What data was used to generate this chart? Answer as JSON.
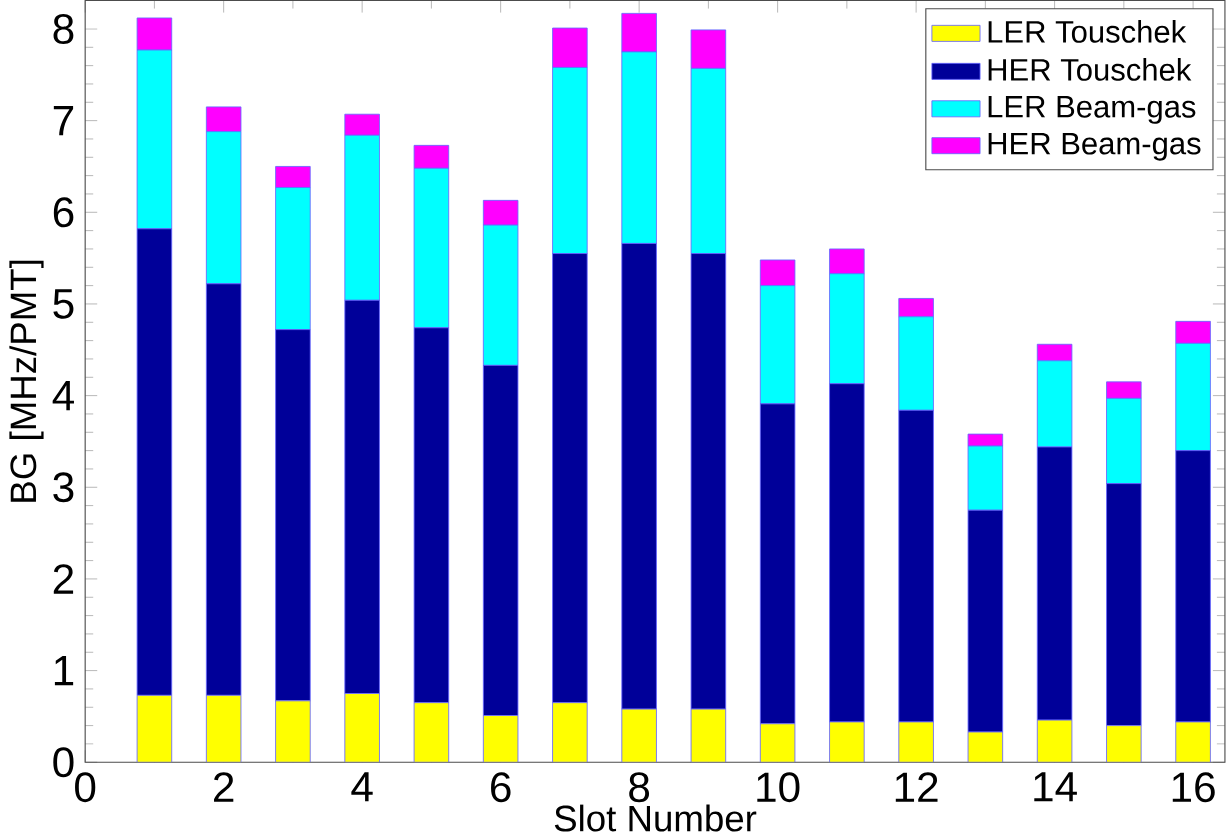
{
  "chart_data": {
    "type": "bar",
    "stacked": true,
    "xlabel": "Slot Number",
    "ylabel": "BG [MHz/PMT]",
    "x": [
      1,
      2,
      3,
      4,
      5,
      6,
      7,
      8,
      9,
      10,
      11,
      12,
      13,
      14,
      15,
      16
    ],
    "series": [
      {
        "name": "LER Touschek",
        "color": "#ffff00",
        "values": [
          0.73,
          0.73,
          0.67,
          0.75,
          0.65,
          0.51,
          0.65,
          0.58,
          0.58,
          0.42,
          0.44,
          0.44,
          0.33,
          0.46,
          0.4,
          0.44
        ]
      },
      {
        "name": "HER Touschek",
        "color": "#000099",
        "values": [
          5.09,
          4.49,
          4.05,
          4.29,
          4.09,
          3.82,
          4.9,
          5.08,
          4.97,
          3.49,
          3.69,
          3.4,
          2.42,
          2.98,
          2.64,
          2.96
        ]
      },
      {
        "name": "LER Beam-gas",
        "color": "#00ffff",
        "values": [
          1.95,
          1.66,
          1.55,
          1.8,
          1.74,
          1.53,
          2.03,
          2.09,
          2.02,
          1.29,
          1.2,
          1.02,
          0.7,
          0.94,
          0.93,
          1.17
        ]
      },
      {
        "name": "HER Beam-gas",
        "color": "#ff00ff",
        "values": [
          0.35,
          0.27,
          0.23,
          0.23,
          0.25,
          0.27,
          0.43,
          0.42,
          0.42,
          0.28,
          0.27,
          0.2,
          0.13,
          0.18,
          0.18,
          0.24
        ]
      }
    ],
    "xlim": [
      0,
      16.46
    ],
    "ylim": [
      0,
      8.31
    ],
    "xticks": [
      0,
      2,
      4,
      6,
      8,
      10,
      12,
      14,
      16
    ],
    "yticks": [
      0,
      1,
      2,
      3,
      4,
      5,
      6,
      7,
      8
    ],
    "legend": "top right"
  }
}
